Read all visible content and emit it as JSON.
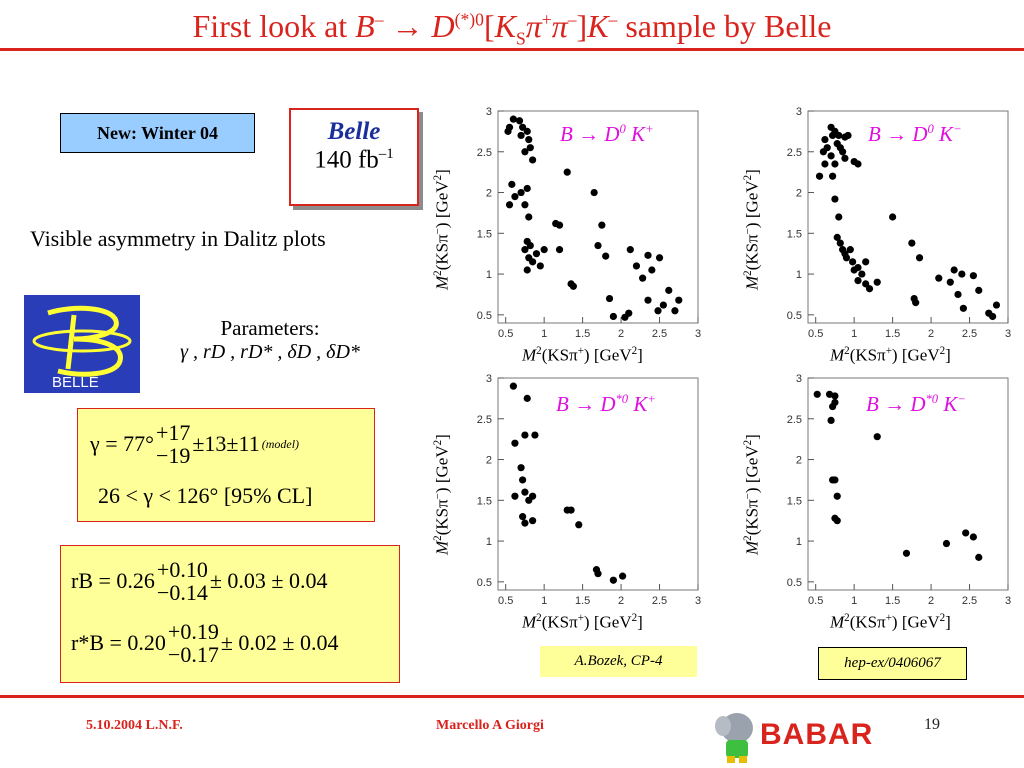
{
  "title": {
    "pre": "First look at ",
    "B": "B",
    "b_charge": "–",
    "arrow": " → ",
    "D": "D",
    "d_sup": "(*)0",
    "bracket_open": "[",
    "K": "K",
    "s_sub": "S",
    "pi1": "π",
    "plus": "+",
    "pi2": "π",
    "minus": "–",
    "bracket_close": "]",
    "K2": "K",
    "k_charge": "–",
    "post": " sample by Belle"
  },
  "new_box": "New: Winter 04",
  "belle_box": {
    "word": "Belle",
    "lumi": "140 fb",
    "lumi_sup": "–1"
  },
  "asymmetry_text": "Visible asymmetry in Dalitz plots",
  "logo_text": "BELLE",
  "params": {
    "label": "Parameters:",
    "list": "γ , rD , rD* , δD , δD*"
  },
  "gamma_result": {
    "lhs": "γ = 77°",
    "up": "+17",
    "down": "−19",
    "rest": "±13±11",
    "model": "(model)",
    "range": "26 < γ < 126°  [95% CL]"
  },
  "rb_result": {
    "r1_lhs": "rB = 0.26",
    "r1_up": "+0.10",
    "r1_down": "−0.14",
    "r1_rest": "± 0.03 ± 0.04",
    "r2_lhs": "r*B = 0.20",
    "r2_up": "+0.19",
    "r2_down": "−0.17",
    "r2_rest": "± 0.02 ± 0.04"
  },
  "plots": {
    "p1": {
      "title": "B → D",
      "title_sup": "0",
      "title_k": " K",
      "title_k_sup": "+"
    },
    "p2": {
      "title": "B → D",
      "title_sup": "0",
      "title_k": " K",
      "title_k_sup": "−"
    },
    "p3": {
      "title": "B → D",
      "title_sup": "*0",
      "title_k": " K",
      "title_k_sup": "+"
    },
    "p4": {
      "title": "B → D",
      "title_sup": "*0",
      "title_k": " K",
      "title_k_sup": "−"
    },
    "xlabel": {
      "m": "M",
      "sq": "2",
      "mid": "(KSπ",
      "plus": "+",
      "end": ") [GeV",
      "sq2": "2",
      "close": "]"
    },
    "ylabel": {
      "m": "M",
      "sq": "2",
      "mid": "(KSπ",
      "minus": "−",
      "end": ") [GeV",
      "sq2": "2",
      "close": "]"
    }
  },
  "chart_data": [
    {
      "type": "scatter",
      "title": "B → D0 K+",
      "xlabel": "M2(KSπ+) [GeV2]",
      "ylabel": "M2(KSπ−) [GeV2]",
      "xlim": [
        0.4,
        3.0
      ],
      "ylim": [
        0.4,
        3.0
      ],
      "xticks": [
        "0.5",
        "1",
        "1.5",
        "2",
        "2.5",
        "3"
      ],
      "yticks": [
        "0.5",
        "1",
        "1.5",
        "2",
        "2.5",
        "3"
      ],
      "points": [
        [
          0.53,
          2.75
        ],
        [
          0.55,
          2.8
        ],
        [
          0.6,
          2.9
        ],
        [
          0.68,
          2.88
        ],
        [
          0.72,
          2.8
        ],
        [
          0.7,
          2.7
        ],
        [
          0.78,
          2.75
        ],
        [
          0.8,
          2.65
        ],
        [
          0.75,
          2.5
        ],
        [
          0.82,
          2.55
        ],
        [
          0.85,
          2.4
        ],
        [
          0.58,
          2.1
        ],
        [
          0.62,
          1.95
        ],
        [
          0.55,
          1.85
        ],
        [
          0.7,
          2.0
        ],
        [
          0.78,
          2.05
        ],
        [
          0.75,
          1.85
        ],
        [
          0.8,
          1.7
        ],
        [
          0.78,
          1.4
        ],
        [
          0.82,
          1.35
        ],
        [
          0.75,
          1.3
        ],
        [
          0.8,
          1.2
        ],
        [
          0.85,
          1.15
        ],
        [
          0.78,
          1.05
        ],
        [
          0.9,
          1.25
        ],
        [
          0.95,
          1.1
        ],
        [
          1.0,
          1.3
        ],
        [
          1.15,
          1.62
        ],
        [
          1.2,
          1.6
        ],
        [
          1.2,
          1.3
        ],
        [
          1.3,
          2.25
        ],
        [
          1.35,
          0.88
        ],
        [
          1.38,
          0.85
        ],
        [
          1.65,
          2.0
        ],
        [
          1.75,
          1.6
        ],
        [
          1.7,
          1.35
        ],
        [
          1.8,
          1.22
        ],
        [
          1.85,
          0.7
        ],
        [
          1.9,
          0.48
        ],
        [
          2.05,
          0.47
        ],
        [
          2.1,
          0.52
        ],
        [
          2.12,
          1.3
        ],
        [
          2.2,
          1.1
        ],
        [
          2.28,
          0.95
        ],
        [
          2.35,
          1.23
        ],
        [
          2.35,
          0.68
        ],
        [
          2.4,
          1.05
        ],
        [
          2.48,
          0.55
        ],
        [
          2.5,
          1.2
        ],
        [
          2.55,
          0.62
        ],
        [
          2.62,
          0.8
        ],
        [
          2.7,
          0.55
        ],
        [
          2.75,
          0.68
        ]
      ]
    },
    {
      "type": "scatter",
      "title": "B → D0 K−",
      "xlabel": "M2(KSπ+) [GeV2]",
      "ylabel": "M2(KSπ−) [GeV2]",
      "xlim": [
        0.4,
        3.0
      ],
      "ylim": [
        0.4,
        3.0
      ],
      "xticks": [
        "0.5",
        "1",
        "1.5",
        "2",
        "2.5",
        "3"
      ],
      "yticks": [
        "0.5",
        "1",
        "1.5",
        "2",
        "2.5",
        "3"
      ],
      "points": [
        [
          0.55,
          2.2
        ],
        [
          0.6,
          2.5
        ],
        [
          0.62,
          2.65
        ],
        [
          0.65,
          2.55
        ],
        [
          0.7,
          2.8
        ],
        [
          0.72,
          2.7
        ],
        [
          0.75,
          2.75
        ],
        [
          0.78,
          2.6
        ],
        [
          0.8,
          2.7
        ],
        [
          0.82,
          2.55
        ],
        [
          0.85,
          2.5
        ],
        [
          0.88,
          2.68
        ],
        [
          0.92,
          2.7
        ],
        [
          0.7,
          2.45
        ],
        [
          0.75,
          2.35
        ],
        [
          0.72,
          2.2
        ],
        [
          0.88,
          2.42
        ],
        [
          1.0,
          2.38
        ],
        [
          1.05,
          2.35
        ],
        [
          0.62,
          2.35
        ],
        [
          0.75,
          1.92
        ],
        [
          0.8,
          1.7
        ],
        [
          0.78,
          1.45
        ],
        [
          0.82,
          1.38
        ],
        [
          0.85,
          1.3
        ],
        [
          0.88,
          1.25
        ],
        [
          0.9,
          1.2
        ],
        [
          0.95,
          1.3
        ],
        [
          0.98,
          1.15
        ],
        [
          1.05,
          1.08
        ],
        [
          1.0,
          1.05
        ],
        [
          1.1,
          1.0
        ],
        [
          1.05,
          0.92
        ],
        [
          1.15,
          0.88
        ],
        [
          1.2,
          0.82
        ],
        [
          1.3,
          0.9
        ],
        [
          1.15,
          1.15
        ],
        [
          1.5,
          1.7
        ],
        [
          1.75,
          1.38
        ],
        [
          1.85,
          1.2
        ],
        [
          1.78,
          0.7
        ],
        [
          1.8,
          0.65
        ],
        [
          2.1,
          0.95
        ],
        [
          2.25,
          0.9
        ],
        [
          2.3,
          1.05
        ],
        [
          2.35,
          0.75
        ],
        [
          2.4,
          1.0
        ],
        [
          2.42,
          0.58
        ],
        [
          2.55,
          0.98
        ],
        [
          2.62,
          0.8
        ],
        [
          2.75,
          0.52
        ],
        [
          2.8,
          0.48
        ],
        [
          2.85,
          0.62
        ]
      ]
    },
    {
      "type": "scatter",
      "title": "B → D*0 K+",
      "xlabel": "M2(KSπ+) [GeV2]",
      "ylabel": "M2(KSπ−) [GeV2]",
      "xlim": [
        0.4,
        3.0
      ],
      "ylim": [
        0.4,
        3.0
      ],
      "xticks": [
        "0.5",
        "1",
        "1.5",
        "2",
        "2.5",
        "3"
      ],
      "yticks": [
        "0.5",
        "1",
        "1.5",
        "2",
        "2.5",
        "3"
      ],
      "points": [
        [
          0.6,
          2.9
        ],
        [
          0.78,
          2.75
        ],
        [
          0.62,
          2.2
        ],
        [
          0.75,
          2.3
        ],
        [
          0.88,
          2.3
        ],
        [
          0.7,
          1.9
        ],
        [
          0.72,
          1.75
        ],
        [
          0.62,
          1.55
        ],
        [
          0.75,
          1.6
        ],
        [
          0.8,
          1.5
        ],
        [
          0.85,
          1.55
        ],
        [
          0.72,
          1.3
        ],
        [
          0.75,
          1.22
        ],
        [
          0.85,
          1.25
        ],
        [
          1.3,
          1.38
        ],
        [
          1.35,
          1.38
        ],
        [
          1.45,
          1.2
        ],
        [
          1.68,
          0.65
        ],
        [
          1.7,
          0.6
        ],
        [
          1.9,
          0.52
        ],
        [
          2.02,
          0.57
        ]
      ]
    },
    {
      "type": "scatter",
      "title": "B → D*0 K−",
      "xlabel": "M2(KSπ+) [GeV2]",
      "ylabel": "M2(KSπ−) [GeV2]",
      "xlim": [
        0.4,
        3.0
      ],
      "ylim": [
        0.4,
        3.0
      ],
      "xticks": [
        "0.5",
        "1",
        "1.5",
        "2",
        "2.5",
        "3"
      ],
      "yticks": [
        "0.5",
        "1",
        "1.5",
        "2",
        "2.5",
        "3"
      ],
      "points": [
        [
          0.52,
          2.8
        ],
        [
          0.68,
          2.8
        ],
        [
          0.75,
          2.78
        ],
        [
          0.72,
          2.65
        ],
        [
          0.7,
          2.48
        ],
        [
          0.75,
          2.7
        ],
        [
          1.3,
          2.28
        ],
        [
          0.72,
          1.75
        ],
        [
          0.75,
          1.75
        ],
        [
          0.78,
          1.55
        ],
        [
          0.75,
          1.28
        ],
        [
          0.78,
          1.25
        ],
        [
          1.68,
          0.85
        ],
        [
          2.2,
          0.97
        ],
        [
          2.45,
          1.1
        ],
        [
          2.55,
          1.05
        ],
        [
          2.62,
          0.8
        ]
      ]
    }
  ],
  "credit_left": "A.Bozek, CP-4",
  "credit_right": "hep-ex/0406067",
  "footer": {
    "date": "5.10.2004 L.N.F.",
    "author": "Marcello A Giorgi",
    "page": "19",
    "babar": "BABAR"
  },
  "colors": {
    "accent": "#d9231d",
    "title_magenta": "#e010e0",
    "belle_blue": "#2a3db8",
    "note_yellow": "#ffff99",
    "box_blue": "#99ccff"
  }
}
